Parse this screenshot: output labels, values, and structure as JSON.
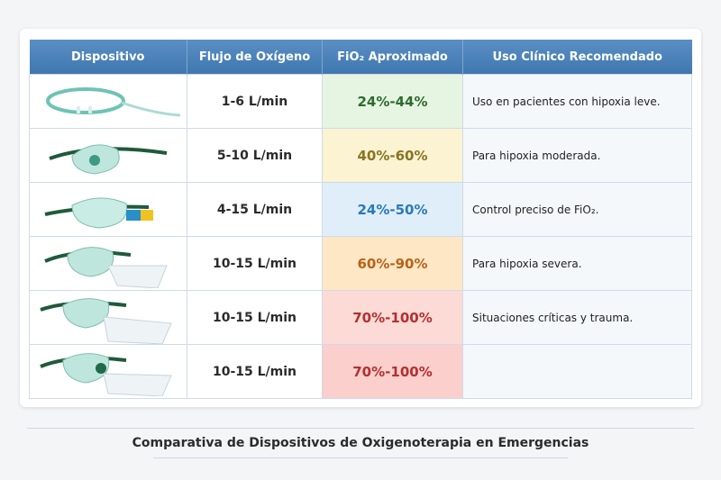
{
  "headers": [
    "Dispositivo",
    "Flujo de Oxígeno",
    "FiO₂ Aproximado",
    "Uso Clínico Recomendado"
  ],
  "rows": [
    {
      "device_icon": "nasal-cannula-icon",
      "flow": "1-6 L/min",
      "fio2": "24%-44%",
      "use": "Uso en pacientes con hipoxia leve.",
      "bg": "#e6f4e2",
      "color": "#2e6b2e"
    },
    {
      "device_icon": "simple-mask-icon",
      "flow": "5-10 L/min",
      "fio2": "40%-60%",
      "use": "Para hipoxia moderada.",
      "bg": "#fbf3d2",
      "color": "#8a7420"
    },
    {
      "device_icon": "venturi-mask-icon",
      "flow": "4-15 L/min",
      "fio2": "24%-50%",
      "use": "Control preciso de FiO₂.",
      "bg": "#e0eefa",
      "color": "#2a7ab8"
    },
    {
      "device_icon": "partial-rebreather-mask-icon",
      "flow": "10-15 L/min",
      "fio2": "60%-90%",
      "use": "Para hipoxia severa.",
      "bg": "#fde7c4",
      "color": "#b8621a"
    },
    {
      "device_icon": "non-rebreather-mask-icon",
      "flow": "10-15 L/min",
      "fio2": "70%-100%",
      "use": "Situaciones críticas y trauma.",
      "bg": "#fcdad6",
      "color": "#b23030"
    },
    {
      "device_icon": "reservoir-mask-icon",
      "flow": "10-15 L/min",
      "fio2": "70%-100%",
      "use": "",
      "bg": "#fbcfcc",
      "color": "#b23030"
    }
  ],
  "footer_title": "Comparativa de Dispositivos de Oxigenoterapia en Emergencias"
}
